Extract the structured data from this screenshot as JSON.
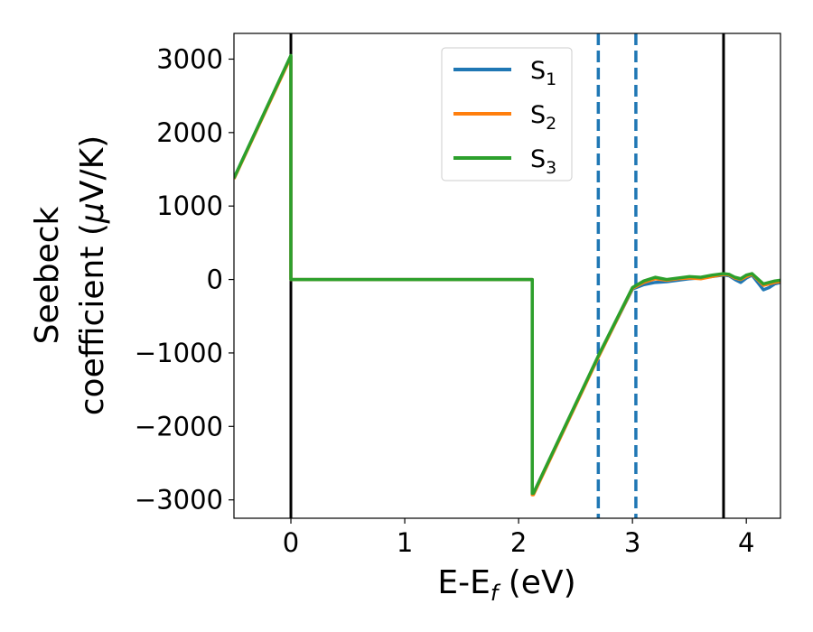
{
  "chart_data": {
    "type": "line",
    "xlabel_main": "E-E",
    "xlabel_sub": "f",
    "xlabel_unit": " (eV)",
    "ylabel_line1": "Seebeck",
    "ylabel_line2_pre": "coefficient  (",
    "ylabel_mu": "μ",
    "ylabel_line2_post": "V/K)",
    "xlim": [
      -0.5,
      4.3
    ],
    "ylim": [
      -3250,
      3350
    ],
    "xticks": [
      0,
      1,
      2,
      3,
      4
    ],
    "xtick_labels": [
      "0",
      "1",
      "2",
      "3",
      "4"
    ],
    "yticks": [
      -3000,
      -2000,
      -1000,
      0,
      1000,
      2000,
      3000
    ],
    "ytick_labels": [
      "−3000",
      "−2000",
      "−1000",
      "0",
      "1000",
      "2000",
      "3000"
    ],
    "grid": false,
    "legend_position": "upper-center",
    "vlines": [
      {
        "x": 0.0,
        "style": "solid",
        "color": "#000000"
      },
      {
        "x": 3.8,
        "style": "solid",
        "color": "#000000"
      },
      {
        "x": 2.7,
        "style": "dashed",
        "color": "#1f77b4"
      },
      {
        "x": 3.03,
        "style": "dashed",
        "color": "#1f77b4"
      }
    ],
    "series": [
      {
        "name_base": "S",
        "name_sub": "1",
        "color": "#1f77b4",
        "x": [
          -0.5,
          0.0,
          0.0,
          0.0,
          2.12,
          2.12,
          2.13,
          2.7,
          3.0,
          3.1,
          3.2,
          3.3,
          3.4,
          3.5,
          3.6,
          3.7,
          3.8,
          3.85,
          3.9,
          3.95,
          4.0,
          4.05,
          4.1,
          4.15,
          4.2,
          4.25,
          4.3
        ],
        "y": [
          1380,
          3040,
          3040,
          0,
          0,
          -2920,
          -2920,
          -1050,
          -130,
          -70,
          -40,
          -30,
          -10,
          10,
          20,
          40,
          60,
          50,
          0,
          -40,
          20,
          60,
          -40,
          -140,
          -110,
          -60,
          -40
        ]
      },
      {
        "name_base": "S",
        "name_sub": "2",
        "color": "#ff7f0e",
        "x": [
          -0.5,
          0.0,
          0.0,
          0.0,
          2.12,
          2.12,
          2.13,
          2.7,
          3.0,
          3.1,
          3.2,
          3.3,
          3.4,
          3.5,
          3.6,
          3.7,
          3.8,
          3.85,
          3.9,
          3.95,
          4.0,
          4.05,
          4.1,
          4.15,
          4.2,
          4.25,
          4.3
        ],
        "y": [
          1370,
          3030,
          3030,
          0,
          0,
          -2930,
          -2930,
          -1060,
          -120,
          -40,
          10,
          -10,
          10,
          20,
          10,
          40,
          70,
          60,
          20,
          0,
          40,
          70,
          0,
          -80,
          -60,
          -40,
          -30
        ]
      },
      {
        "name_base": "S",
        "name_sub": "3",
        "color": "#2ca02c",
        "x": [
          -0.5,
          0.0,
          0.0,
          0.0,
          2.12,
          2.12,
          2.13,
          2.7,
          3.0,
          3.1,
          3.2,
          3.3,
          3.4,
          3.5,
          3.6,
          3.7,
          3.8,
          3.85,
          3.9,
          3.95,
          4.0,
          4.05,
          4.1,
          4.15,
          4.2,
          4.25,
          4.3
        ],
        "y": [
          1380,
          3050,
          3050,
          0,
          0,
          -2910,
          -2910,
          -1040,
          -110,
          -20,
          30,
          0,
          20,
          40,
          30,
          60,
          80,
          70,
          30,
          10,
          60,
          80,
          10,
          -60,
          -40,
          -20,
          -10
        ]
      }
    ]
  }
}
